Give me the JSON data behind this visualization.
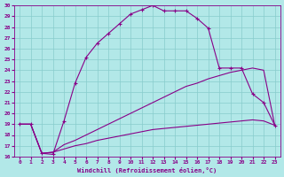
{
  "xlabel": "Windchill (Refroidissement éolien,°C)",
  "bg_color": "#b2e8e8",
  "grid_color": "#88cccc",
  "line_color": "#880088",
  "xlim": [
    -0.5,
    23.5
  ],
  "ylim": [
    16,
    30
  ],
  "xticks": [
    0,
    1,
    2,
    3,
    4,
    5,
    6,
    7,
    8,
    9,
    10,
    11,
    12,
    13,
    14,
    15,
    16,
    17,
    18,
    19,
    20,
    21,
    22,
    23
  ],
  "yticks": [
    16,
    17,
    18,
    19,
    20,
    21,
    22,
    23,
    24,
    25,
    26,
    27,
    28,
    29,
    30
  ],
  "series1_x": [
    0,
    1,
    2,
    3,
    4,
    5,
    6,
    7,
    8,
    9,
    10,
    11,
    12,
    13,
    14,
    15,
    16,
    17,
    18,
    19,
    20,
    21,
    22,
    23
  ],
  "series1_y": [
    19.0,
    19.0,
    16.3,
    16.2,
    19.3,
    22.8,
    25.2,
    26.5,
    27.4,
    28.3,
    29.2,
    29.6,
    30.0,
    29.5,
    29.5,
    29.5,
    28.8,
    27.9,
    24.2,
    24.2,
    24.2,
    21.8,
    21.0,
    18.9
  ],
  "series2_x": [
    0,
    1,
    2,
    3,
    4,
    5,
    6,
    7,
    8,
    9,
    10,
    11,
    12,
    13,
    14,
    15,
    16,
    17,
    18,
    19,
    20,
    21,
    22,
    23
  ],
  "series2_y": [
    19.0,
    19.0,
    16.3,
    16.4,
    17.1,
    17.5,
    18.0,
    18.5,
    19.0,
    19.5,
    20.0,
    20.5,
    21.0,
    21.5,
    22.0,
    22.5,
    22.8,
    23.2,
    23.5,
    23.8,
    24.0,
    24.2,
    24.0,
    18.9
  ],
  "series3_x": [
    0,
    1,
    2,
    3,
    4,
    5,
    6,
    7,
    8,
    9,
    10,
    11,
    12,
    13,
    14,
    15,
    16,
    17,
    18,
    19,
    20,
    21,
    22,
    23
  ],
  "series3_y": [
    19.0,
    19.0,
    16.3,
    16.4,
    16.7,
    17.0,
    17.2,
    17.5,
    17.7,
    17.9,
    18.1,
    18.3,
    18.5,
    18.6,
    18.7,
    18.8,
    18.9,
    19.0,
    19.1,
    19.2,
    19.3,
    19.4,
    19.3,
    18.9
  ]
}
